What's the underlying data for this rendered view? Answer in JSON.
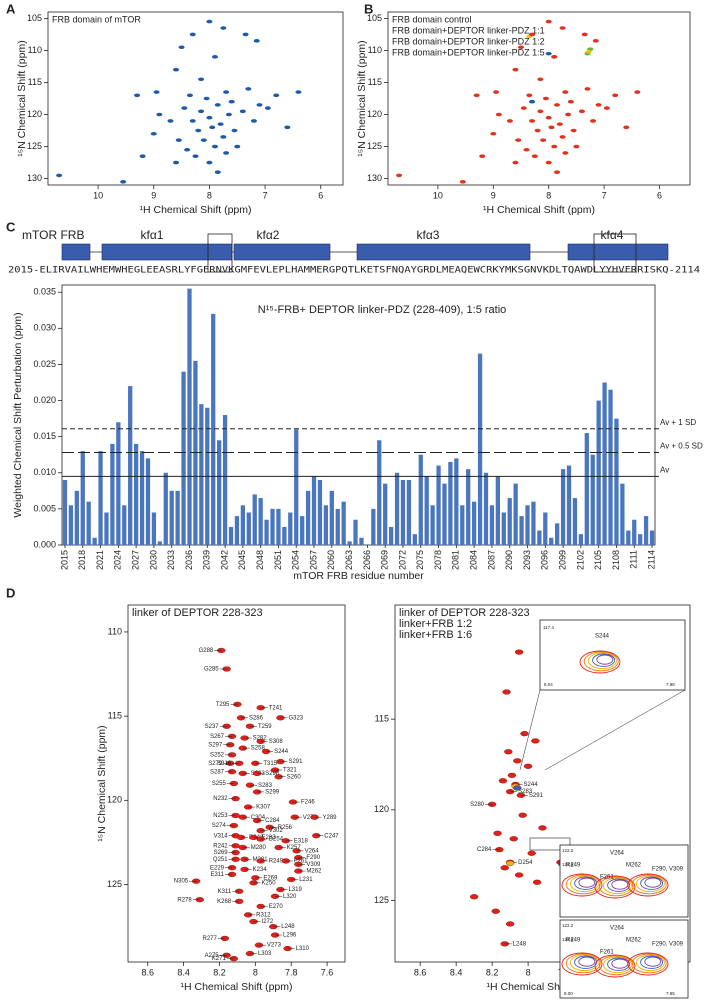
{
  "chart_data": [
    {
      "type": "scatter",
      "panel": "A",
      "title": "FRB domain of mTOR",
      "title_color": "#1f5aa6",
      "xlabel": "¹H Chemical Shift (ppm)",
      "ylabel": "¹⁵N Chemical Shift (ppm)",
      "xlim": [
        10.9,
        5.6
      ],
      "ylim": [
        104,
        131
      ],
      "xticks": [
        10,
        9,
        8,
        7,
        6
      ],
      "yticks": [
        105,
        110,
        115,
        120,
        125,
        130
      ],
      "series": [
        {
          "color": "#1f5aa6",
          "x": [
            10.7,
            9.55,
            9.2,
            9.3,
            8.95,
            8.6,
            8.3,
            8.0,
            7.75,
            7.35,
            7.15,
            7.9,
            8.5,
            8.7,
            8.55,
            8.45,
            8.35,
            8.3,
            8.2,
            8.15,
            8.1,
            8.05,
            8.0,
            7.95,
            7.9,
            7.85,
            7.8,
            7.75,
            7.7,
            7.65,
            7.6,
            7.55,
            7.5,
            7.4,
            7.3,
            7.2,
            7.1,
            6.95,
            6.8,
            6.6,
            6.4,
            8.25,
            8.0,
            8.6,
            7.85,
            9.0,
            8.9,
            8.4,
            7.7,
            8.15
          ],
          "y": [
            129.5,
            130.5,
            126.5,
            117,
            116.5,
            113,
            107.5,
            105.5,
            106.5,
            107.5,
            108.5,
            111,
            109.5,
            121,
            124,
            119,
            117,
            121,
            122.5,
            119.5,
            124,
            117.5,
            120.5,
            122,
            125,
            118.5,
            121.5,
            123.5,
            116.5,
            120,
            118,
            122.5,
            125,
            119.5,
            116,
            121,
            118.5,
            119,
            117,
            122,
            116.5,
            126.5,
            127.5,
            127.5,
            129,
            123,
            120,
            125.5,
            126,
            114.5
          ]
        }
      ]
    },
    {
      "type": "scatter",
      "panel": "B",
      "xlabel": "¹H Chemical Shift (ppm)",
      "ylabel": "¹⁵N Chemical Shift (ppm)",
      "xlim": [
        10.9,
        5.45
      ],
      "ylim": [
        104,
        131
      ],
      "xticks": [
        10,
        9,
        8,
        7,
        6
      ],
      "yticks": [
        105,
        110,
        115,
        120,
        125,
        130
      ],
      "series": [
        {
          "name": "FRB domain control",
          "color": "#1f5aa6",
          "x": [
            8.0,
            7.9,
            8.3
          ],
          "y": [
            110.5,
            111,
            118
          ]
        },
        {
          "name": "FRB domain+DEPTOR linker-PDZ 1:1",
          "color": "#5cb82e",
          "x": [
            7.25,
            7.3
          ],
          "y": [
            109.8,
            110.5
          ]
        },
        {
          "name": "FRB domain+DEPTOR linker-PDZ 1:2",
          "color": "#e8c21a",
          "x": [
            7.28,
            8.35
          ],
          "y": [
            110.2,
            107.8
          ]
        },
        {
          "name": "FRB domain+DEPTOR linker-PDZ 1:5",
          "color": "#e2321c",
          "x": [
            10.7,
            9.55,
            9.2,
            9.3,
            8.95,
            8.6,
            8.3,
            8.0,
            7.75,
            7.35,
            7.15,
            7.9,
            8.5,
            8.7,
            8.55,
            8.45,
            8.35,
            8.3,
            8.2,
            8.15,
            8.1,
            8.05,
            8.0,
            7.95,
            7.9,
            7.85,
            7.8,
            7.75,
            7.7,
            7.65,
            7.6,
            7.55,
            7.5,
            7.4,
            7.3,
            7.2,
            7.1,
            6.95,
            6.8,
            6.6,
            6.4,
            8.25,
            8.0,
            8.6,
            7.85,
            9.0,
            8.9,
            8.4,
            7.7,
            8.15
          ],
          "y": [
            129.5,
            130.5,
            126.5,
            117,
            116.5,
            113,
            107.5,
            105.5,
            106.5,
            107.5,
            108.5,
            111,
            109.5,
            121,
            124,
            119,
            117,
            121,
            122.5,
            119.5,
            124,
            117.5,
            120.5,
            122,
            125,
            118.5,
            121.5,
            123.5,
            116.5,
            120,
            118,
            122.5,
            125,
            119.5,
            116,
            121,
            118.5,
            119,
            117,
            122,
            116.5,
            126.5,
            127.5,
            127.5,
            129,
            123,
            120,
            125.5,
            126,
            114.5
          ]
        }
      ]
    },
    {
      "type": "bar",
      "panel": "C",
      "domains": [
        "mTOR FRB",
        "kfα1",
        "kfα2",
        "kfα3",
        "kfα4"
      ],
      "sequence": "2015-ELIRVAILWHEMWHEGLEEASRLYFGERNVKGMFEVLEPLHAMMERGPQTLKETSFNQAYGRDLMEAQEWCRKYMKSGNVKDLTQAWDLYYHVFRRISKQ-2114",
      "title": "N¹⁵-FRB+ DEPTOR linker-PDZ (228-409), 1:5 ratio",
      "xlabel": "mTOR FRB residue number",
      "ylabel": "Weighted Chemical Shift Perturbation (ppm)",
      "color": "#4a76bf",
      "x": [
        2015,
        2016,
        2017,
        2018,
        2019,
        2020,
        2021,
        2022,
        2023,
        2024,
        2025,
        2026,
        2027,
        2028,
        2029,
        2030,
        2031,
        2032,
        2033,
        2034,
        2035,
        2036,
        2037,
        2038,
        2039,
        2040,
        2041,
        2042,
        2043,
        2044,
        2045,
        2046,
        2047,
        2048,
        2049,
        2050,
        2051,
        2052,
        2053,
        2054,
        2055,
        2056,
        2057,
        2058,
        2059,
        2060,
        2061,
        2062,
        2063,
        2064,
        2065,
        2066,
        2067,
        2068,
        2069,
        2070,
        2071,
        2072,
        2073,
        2074,
        2075,
        2076,
        2077,
        2078,
        2079,
        2080,
        2081,
        2082,
        2083,
        2084,
        2085,
        2086,
        2087,
        2088,
        2089,
        2090,
        2091,
        2092,
        2093,
        2094,
        2095,
        2096,
        2097,
        2098,
        2099,
        2100,
        2101,
        2102,
        2103,
        2104,
        2105,
        2106,
        2107,
        2108,
        2109,
        2110,
        2111,
        2112,
        2113,
        2114
      ],
      "values": [
        0.009,
        0.0055,
        0.0075,
        0.013,
        0.006,
        0.001,
        0.013,
        0.0045,
        0.014,
        0.017,
        0.0055,
        0.022,
        0.014,
        0.013,
        0.012,
        0.0045,
        0.0005,
        0.01,
        0.0075,
        0.0075,
        0.024,
        0.0355,
        0.0255,
        0.0195,
        0.019,
        0.032,
        0.0145,
        0.018,
        0.0025,
        0.004,
        0.0055,
        0.0045,
        0.007,
        0.0065,
        0.0035,
        0.005,
        0.005,
        0.0025,
        0.0045,
        0.016,
        0.004,
        0.0075,
        0.0095,
        0.009,
        0.0055,
        0.0075,
        0.005,
        0.006,
        0.0005,
        0.0035,
        0.001,
        0,
        0.005,
        0.0145,
        0.0085,
        0.0025,
        0.01,
        0.009,
        0.009,
        0.0015,
        0.0125,
        0.0095,
        0.0055,
        0.011,
        0.0085,
        0.0115,
        0.012,
        0.0055,
        0.0105,
        0.006,
        0.0265,
        0.01,
        0.0055,
        0.0095,
        0.0045,
        0.0065,
        0.0085,
        0.004,
        0.0055,
        0.006,
        0.002,
        0.0045,
        0.001,
        0.003,
        0.0105,
        0.011,
        0.0065,
        0.0015,
        0.0155,
        0.0125,
        0.02,
        0.0225,
        0.0215,
        0.0175,
        0.0085,
        0.002,
        0.0035,
        0.0015,
        0.004,
        0.002
      ],
      "xlim": [
        2014.5,
        2114.5
      ],
      "ylim": [
        0,
        0.036
      ],
      "xticks": [
        2015,
        2018,
        2021,
        2024,
        2027,
        2030,
        2033,
        2036,
        2039,
        2042,
        2045,
        2048,
        2051,
        2054,
        2057,
        2060,
        2063,
        2066,
        2069,
        2072,
        2075,
        2078,
        2081,
        2084,
        2087,
        2090,
        2093,
        2096,
        2099,
        2102,
        2105,
        2108,
        2111,
        2114
      ],
      "yticks": [
        {
          "value": 0,
          "label": "0.000"
        },
        0.005,
        {
          "value": 0.01,
          "label": "0.010"
        },
        0.015,
        {
          "value": 0.02,
          "label": "0.020"
        },
        0.025,
        {
          "value": 0.03,
          "label": "0.030"
        },
        0.035
      ],
      "reference_lines": [
        {
          "label": "Av + 1 SD",
          "value": 0.0161,
          "style": "dashed"
        },
        {
          "label": "Av + 0.5 SD",
          "value": 0.0128,
          "style": "longdash"
        },
        {
          "label": "Av",
          "value": 0.0095,
          "style": "solid"
        }
      ]
    },
    {
      "type": "scatter",
      "panel": "D",
      "title": "linker of DEPTOR 228-323",
      "title_color": "#e0201a",
      "xlabel": "¹H Chemical Shift (ppm)",
      "ylabel": "¹⁵N Chemical Shift  (ppm)",
      "xlim": [
        8.71,
        7.5
      ],
      "ylim": [
        108.4,
        129.6
      ],
      "xticks": [
        8.6,
        8.4,
        8.2,
        8.0,
        7.8,
        7.6
      ],
      "yticks": [
        110,
        115,
        120,
        125
      ],
      "series": [
        {
          "color": "#e0201a",
          "labels": [
            "G288",
            "G285",
            "T295",
            "T241",
            "G323",
            "S286",
            "T259",
            "S237",
            "S267",
            "S282",
            "S308",
            "S297",
            "S258",
            "S244",
            "S252",
            "S279",
            "S316",
            "T315",
            "S291",
            "S287",
            "T321",
            "S263",
            "S298",
            "S260",
            "S255",
            "S283",
            "S299",
            "N232",
            "F246",
            "K307",
            "N253",
            "C304",
            "C284",
            "V276",
            "Y289",
            "S274",
            "R256",
            "V302",
            "C247",
            "V314",
            "D243",
            "E233",
            "D254",
            "E318",
            "R242",
            "M280",
            "K257",
            "V264",
            "S269",
            "F290",
            "Q251",
            "M281",
            "R249",
            "F261",
            "V309",
            "E229",
            "K234",
            "M262",
            "E311",
            "E269",
            "L231",
            "N305",
            "K250",
            "K311",
            "L319",
            "L320",
            "R278",
            "K268",
            "E270",
            "R312",
            "I272",
            "L248",
            "L296",
            "R277",
            "V273",
            "L310",
            "A275",
            "L303",
            "K271"
          ],
          "x": [
            8.19,
            8.16,
            8.1,
            7.97,
            7.86,
            8.08,
            8.03,
            8.16,
            8.13,
            8.06,
            7.97,
            8.14,
            8.07,
            7.94,
            8.13,
            8.14,
            8.09,
            8.0,
            7.86,
            8.13,
            7.89,
            8.07,
            7.99,
            7.87,
            8.12,
            8.03,
            7.99,
            8.11,
            7.79,
            8.04,
            8.11,
            8.07,
            7.99,
            7.78,
            7.67,
            8.12,
            7.92,
            7.97,
            7.66,
            8.11,
            8.08,
            8.01,
            7.97,
            7.83,
            8.11,
            8.07,
            7.87,
            7.77,
            8.11,
            7.76,
            8.11,
            8.06,
            7.97,
            7.83,
            7.76,
            8.13,
            8.06,
            7.76,
            8.13,
            8.0,
            7.8,
            8.33,
            8.01,
            8.09,
            7.86,
            7.89,
            8.31,
            8.09,
            7.97,
            8.04,
            8.01,
            7.9,
            7.89,
            8.17,
            7.98,
            7.82,
            8.16,
            8.03,
            8.12
          ],
          "y": [
            111.1,
            112.2,
            114.3,
            114.5,
            115.1,
            115.1,
            115.6,
            115.6,
            116.2,
            116.3,
            116.5,
            116.7,
            116.9,
            117.1,
            117.3,
            117.8,
            117.8,
            117.8,
            117.7,
            118.3,
            118.2,
            118.4,
            118.4,
            118.6,
            119.0,
            119.1,
            119.5,
            119.9,
            120.1,
            120.4,
            120.9,
            121.0,
            121.2,
            121.0,
            121.0,
            121.5,
            121.6,
            121.8,
            122.1,
            122.1,
            122.2,
            122.2,
            122.3,
            122.4,
            122.7,
            122.8,
            122.8,
            123.0,
            123.1,
            123.4,
            123.5,
            123.5,
            123.6,
            123.6,
            123.8,
            124.0,
            124.1,
            124.2,
            124.4,
            124.6,
            124.7,
            124.8,
            124.9,
            125.4,
            125.3,
            125.7,
            125.9,
            126.0,
            126.3,
            126.8,
            127.2,
            127.5,
            128.0,
            128.2,
            128.6,
            128.8,
            129.2,
            129.1,
            129.4
          ]
        }
      ]
    },
    {
      "type": "scatter",
      "panel": "D2",
      "xlabel": "¹H Chemical Shift (ppm)",
      "xlim": [
        8.74,
        7.1
      ],
      "ylim": [
        108.7,
        128.4
      ],
      "xticks": [
        8.6,
        8.4,
        8.2,
        8.0,
        7.8
      ],
      "yticks": [
        115,
        120,
        125
      ],
      "series": [
        {
          "name": "linker of DEPTOR 228-323",
          "color": "#e0201a",
          "labels": [
            "S244",
            "S283",
            "S291",
            "S280",
            "C284",
            "D254",
            "C247",
            "L248",
            null,
            null,
            null,
            null,
            null,
            null,
            null,
            null,
            null,
            null,
            null,
            null,
            null,
            null,
            null,
            null,
            null,
            null,
            null,
            null
          ],
          "x": [
            8.07,
            8.1,
            8.04,
            8.2,
            8.16,
            8.1,
            7.82,
            8.13,
            8.05,
            8.12,
            8.02,
            7.96,
            8.11,
            8.06,
            8.0,
            8.09,
            8.14,
            8.03,
            7.92,
            8.17,
            8.08,
            7.98,
            8.13,
            8.05,
            7.95,
            8.3,
            8.18,
            8.1
          ],
          "y": [
            118.6,
            119.0,
            119.2,
            119.7,
            122.2,
            122.9,
            122.9,
            127.4,
            111.3,
            113.5,
            115.8,
            116.2,
            116.8,
            117.3,
            117.6,
            118.1,
            118.4,
            120.3,
            121.0,
            121.3,
            121.6,
            122.4,
            123.2,
            123.6,
            124.0,
            124.8,
            125.6,
            126.3
          ]
        },
        {
          "name": "linker+FRB 1:2",
          "color": "#f2b400",
          "x": [
            8.07,
            8.1
          ],
          "y": [
            118.7,
            122.95
          ]
        },
        {
          "name": "linker+FRB 1:6",
          "color": "#3f5fb5",
          "x": [
            8.06,
            7.81
          ],
          "y": [
            118.8,
            123.0
          ]
        }
      ],
      "insets": [
        {
          "texts": [
            "S244"
          ],
          "tick_labels": [
            "117.4",
            "8.04",
            "7.98"
          ]
        },
        {
          "texts": [
            "V264",
            "R249",
            "F261",
            "M262",
            "F290, V309"
          ],
          "tick_labels": [
            "122.2",
            "123.6"
          ]
        },
        {
          "texts": [
            "V264",
            "R249",
            "F261",
            "M262",
            "F290, V309"
          ],
          "tick_labels": [
            "122.2",
            "123.6",
            "8.00",
            "7.85"
          ]
        }
      ]
    }
  ]
}
